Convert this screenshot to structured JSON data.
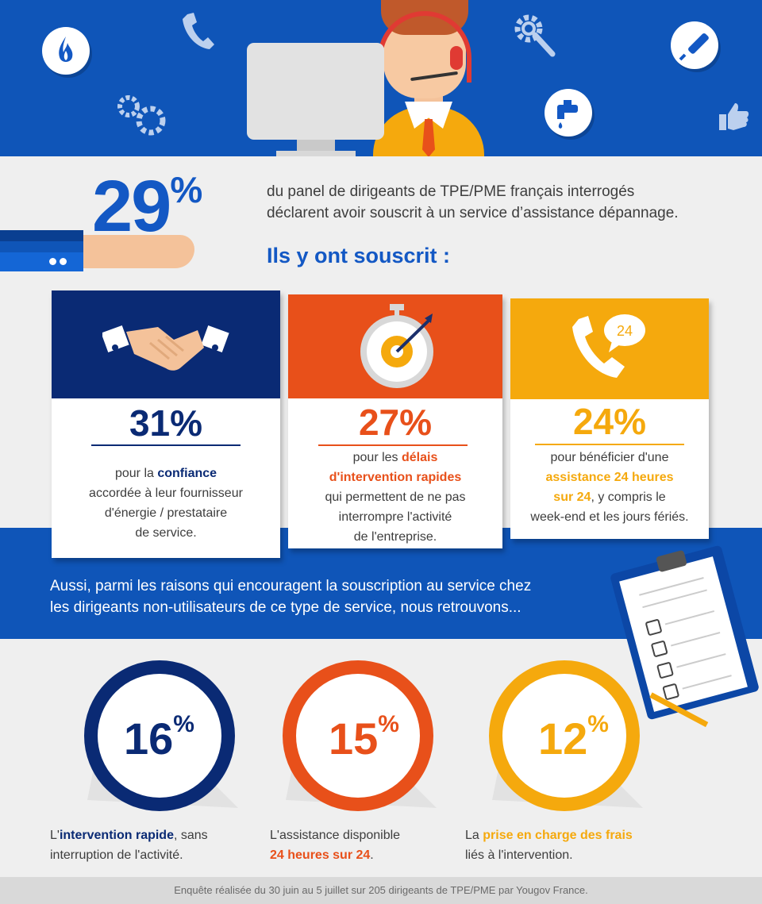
{
  "header": {
    "icons": [
      "flame-icon",
      "phone-icon",
      "gear-wrench-icon",
      "screwdriver-icon",
      "gears-icon",
      "faucet-icon",
      "thumbs-up-icon"
    ],
    "illustration": "support-agent-with-monitor"
  },
  "intro": {
    "big_number": "29",
    "big_suffix": "%",
    "line1": "du panel de dirigeants de TPE/PME français interrogés",
    "line2": "déclarent avoir souscrit à un service d’assistance dépannage.",
    "subtitle": "Ils y ont souscrit :"
  },
  "cards": [
    {
      "color": "#0a2a74",
      "icon": "handshake-icon",
      "percent": "31%",
      "pre": "pour la ",
      "bold": "confiance",
      "post_lines": [
        "accordée à leur fournisseur",
        "d'énergie / prestataire",
        "de service."
      ]
    },
    {
      "color": "#e8501a",
      "icon": "stopwatch-icon",
      "percent": "27%",
      "pre": "pour les ",
      "bold": "délais",
      "bold2": "d'intervention rapides",
      "post_lines": [
        "qui permettent de ne pas",
        "interrompre l'activité",
        "de l'entreprise."
      ]
    },
    {
      "color": "#f5a90d",
      "icon": "phone-24-icon",
      "icon_badge": "24",
      "percent": "24%",
      "pre": "pour bénéficier d'une",
      "bold": "assistance 24 heures",
      "bold2": "sur 24",
      "post_inline": ", y compris le",
      "post_lines": [
        "week-end et les jours fériés."
      ]
    }
  ],
  "reasons": {
    "line1": "Aussi, parmi les raisons qui encouragent la souscription au service chez",
    "line2": "les dirigeants non-utilisateurs de ce type de service, nous retrouvons..."
  },
  "rings": [
    {
      "value": "16",
      "suffix": "%",
      "fraction": 0.16,
      "color": "#0a2a74",
      "pre": "L'",
      "bold": "intervention rapide",
      "post": ", sans",
      "line2": "interruption de l'activité."
    },
    {
      "value": "15",
      "suffix": "%",
      "fraction": 0.15,
      "color": "#e8501a",
      "pre": "L'assistance disponible",
      "bold": "24 heures sur 24",
      "post": "."
    },
    {
      "value": "12",
      "suffix": "%",
      "fraction": 0.12,
      "color": "#f5a90d",
      "pre": "La ",
      "bold": "prise en charge des frais",
      "line2": "liés à l'intervention."
    }
  ],
  "footer": "Enquête réalisée du 30 juin au 5 juillet sur 205 dirigeants de TPE/PME par Yougov France."
}
